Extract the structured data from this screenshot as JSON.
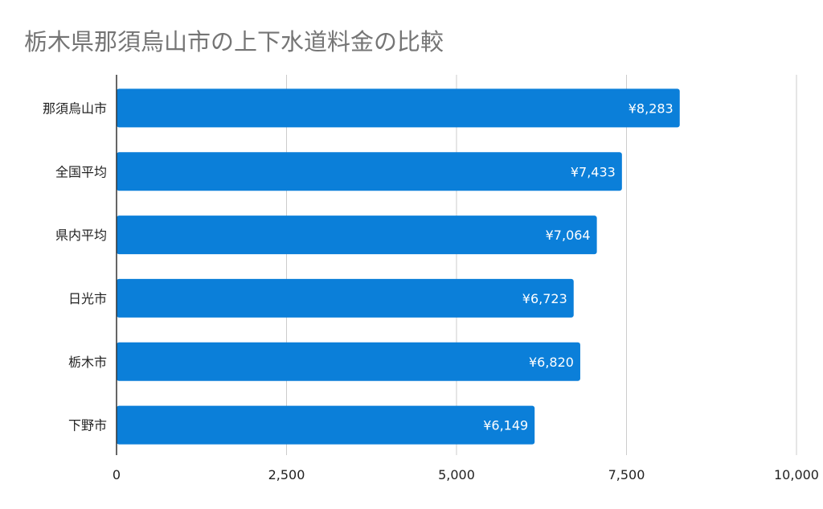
{
  "chart_data": {
    "type": "bar",
    "orientation": "horizontal",
    "title": "栃木県那須烏山市の上下水道料金の比較",
    "categories": [
      "那須烏山市",
      "全国平均",
      "県内平均",
      "日光市",
      "栃木市",
      "下野市"
    ],
    "values": [
      8283,
      7433,
      7064,
      6723,
      6820,
      6149
    ],
    "data_labels": [
      "¥8,283",
      "¥7,433",
      "¥7,064",
      "¥6,723",
      "¥6,820",
      "¥6,149"
    ],
    "xlim": [
      0,
      10000
    ],
    "ticks": [
      0,
      2500,
      5000,
      7500,
      10000
    ],
    "tick_labels": [
      "0",
      "2,500",
      "5,000",
      "7,500",
      "10,000"
    ],
    "grid": true,
    "legend": "none",
    "bar_color": "#0b7fd9",
    "title_color": "#757575"
  }
}
